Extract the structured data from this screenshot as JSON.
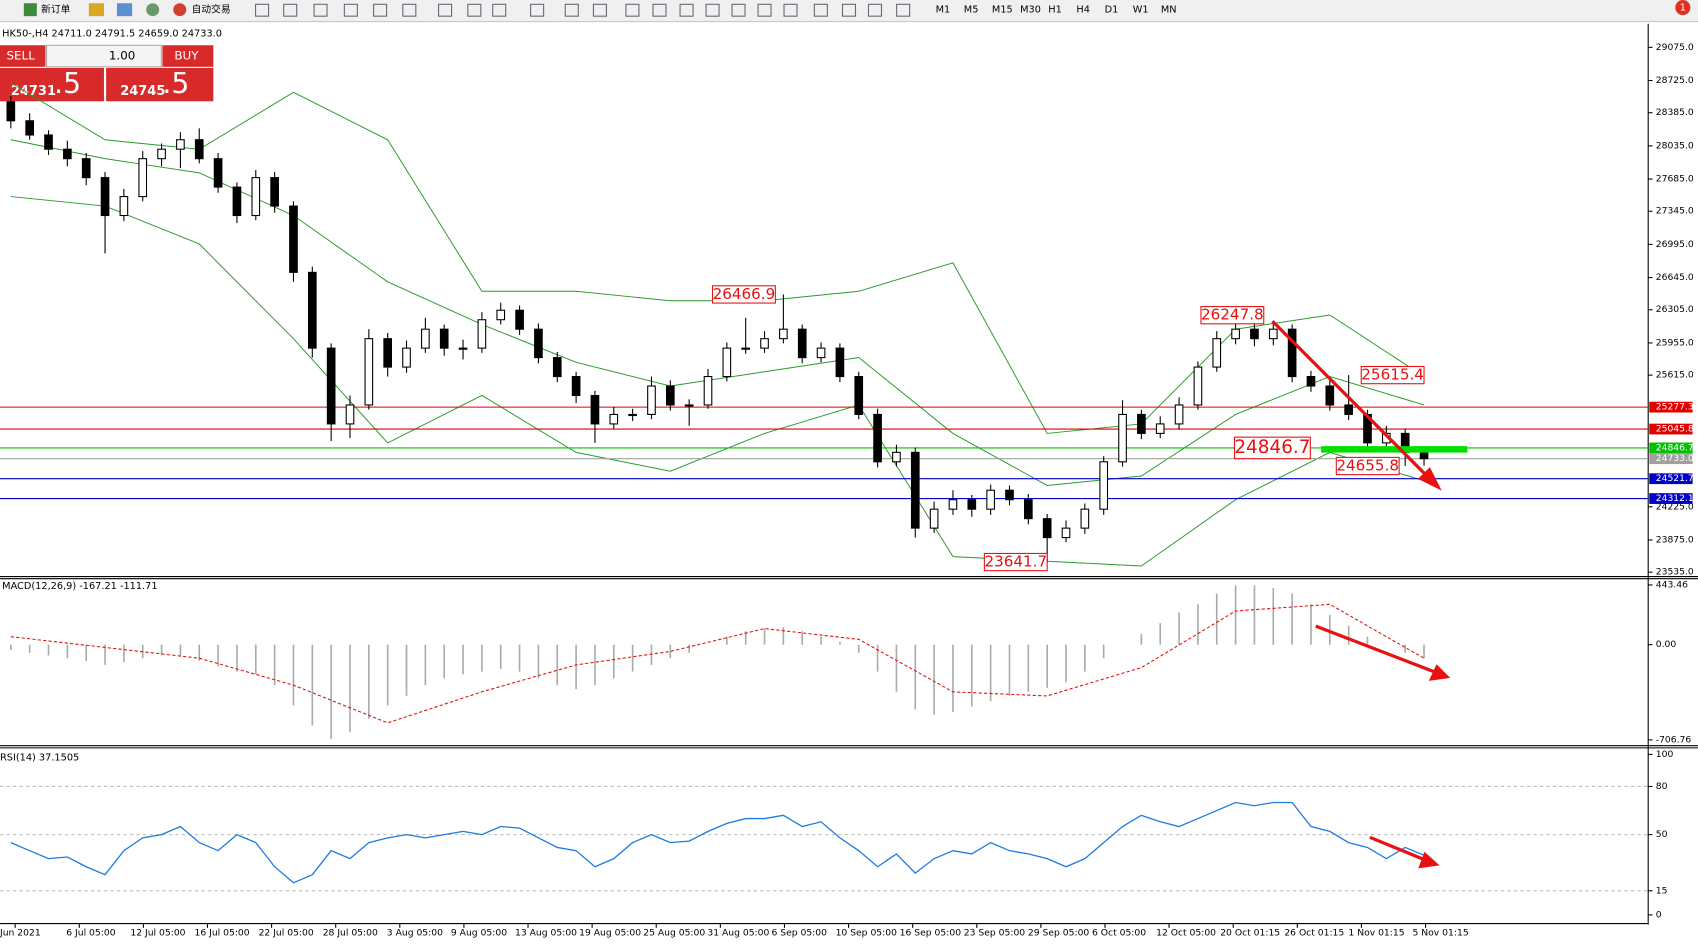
{
  "toolbar": {
    "new_order": "新订单",
    "auto_trade": "自动交易",
    "timeframes": [
      "M1",
      "M5",
      "M15",
      "M30",
      "H1",
      "H4",
      "D1",
      "W1",
      "MN"
    ],
    "alert_count": "1"
  },
  "symbol_info": "HK50-,H4  24711.0 24791.5 24659.0 24733.0",
  "trade_panel": {
    "sell": "SELL",
    "buy": "BUY",
    "lots": "1.00",
    "sell_big": "24731",
    "sell_small": ".5",
    "buy_big": "24745",
    "buy_small": ".5"
  },
  "main_chart": {
    "type": "candlestick",
    "ylim": [
      23489,
      29302
    ],
    "yticks": [
      {
        "value": 29075,
        "label": "29075.0"
      },
      {
        "value": 28725,
        "label": "28725.0"
      },
      {
        "value": 28385,
        "label": "28385.0"
      },
      {
        "value": 28035,
        "label": "28035.0"
      },
      {
        "value": 27685,
        "label": "27685.0"
      },
      {
        "value": 27345,
        "label": "27345.0"
      },
      {
        "value": 26995,
        "label": "26995.0"
      },
      {
        "value": 26645,
        "label": "26645.0"
      },
      {
        "value": 26305,
        "label": "26305.0"
      },
      {
        "value": 25955,
        "label": "25955.0"
      },
      {
        "value": 25615,
        "label": "25615.0"
      },
      {
        "value": 24225,
        "label": "24225.0"
      },
      {
        "value": 23875,
        "label": "23875.0"
      },
      {
        "value": 23535,
        "label": "23535.0"
      }
    ],
    "candles": [
      [
        28500,
        28560,
        28220,
        28300
      ],
      [
        28300,
        28380,
        28100,
        28150
      ],
      [
        28150,
        28200,
        27940,
        28000
      ],
      [
        28000,
        28090,
        27820,
        27900
      ],
      [
        27900,
        27960,
        27620,
        27700
      ],
      [
        27700,
        27760,
        26900,
        27300
      ],
      [
        27300,
        27580,
        27240,
        27500
      ],
      [
        27500,
        27980,
        27450,
        27900
      ],
      [
        27900,
        28060,
        27820,
        28000
      ],
      [
        28000,
        28180,
        27800,
        28100
      ],
      [
        28100,
        28220,
        27850,
        27900
      ],
      [
        27900,
        27960,
        27540,
        27600
      ],
      [
        27600,
        27650,
        27220,
        27300
      ],
      [
        27300,
        27780,
        27250,
        27700
      ],
      [
        27700,
        27760,
        27330,
        27400
      ],
      [
        27400,
        27450,
        26600,
        26700
      ],
      [
        26700,
        26760,
        25800,
        25900
      ],
      [
        25900,
        25950,
        24920,
        25100
      ],
      [
        25100,
        25400,
        24950,
        25300
      ],
      [
        25300,
        26100,
        25250,
        26000
      ],
      [
        26000,
        26060,
        25600,
        25700
      ],
      [
        25700,
        25980,
        25640,
        25900
      ],
      [
        25900,
        26220,
        25850,
        26100
      ],
      [
        26100,
        26150,
        25820,
        25900
      ],
      [
        25900,
        25990,
        25780,
        25900
      ],
      [
        25900,
        26280,
        25850,
        26200
      ],
      [
        26200,
        26380,
        26150,
        26300
      ],
      [
        26300,
        26350,
        26040,
        26100
      ],
      [
        26100,
        26160,
        25740,
        25800
      ],
      [
        25800,
        25860,
        25540,
        25600
      ],
      [
        25600,
        25650,
        25320,
        25400
      ],
      [
        25400,
        25450,
        24900,
        25100
      ],
      [
        25100,
        25280,
        25050,
        25200
      ],
      [
        25200,
        25260,
        25130,
        25200
      ],
      [
        25200,
        25600,
        25150,
        25500
      ],
      [
        25500,
        25560,
        25240,
        25300
      ],
      [
        25300,
        25360,
        25080,
        25300
      ],
      [
        25300,
        25680,
        25260,
        25600
      ],
      [
        25600,
        25960,
        25550,
        25900
      ],
      [
        25900,
        26220,
        25840,
        25900
      ],
      [
        25900,
        26080,
        25850,
        26000
      ],
      [
        26000,
        26466.9,
        25950,
        26100
      ],
      [
        26100,
        26150,
        25740,
        25800
      ],
      [
        25800,
        25960,
        25750,
        25900
      ],
      [
        25900,
        25950,
        25540,
        25600
      ],
      [
        25600,
        25650,
        25150,
        25200
      ],
      [
        25200,
        25260,
        24640,
        24700
      ],
      [
        24700,
        24880,
        24650,
        24800
      ],
      [
        24800,
        24850,
        23900,
        24000
      ],
      [
        24000,
        24280,
        23950,
        24200
      ],
      [
        24200,
        24400,
        24140,
        24300
      ],
      [
        24300,
        24350,
        24120,
        24200
      ],
      [
        24200,
        24460,
        24140,
        24400
      ],
      [
        24400,
        24450,
        24240,
        24300
      ],
      [
        24300,
        24360,
        24040,
        24100
      ],
      [
        24100,
        24150,
        23641.7,
        23900
      ],
      [
        23900,
        24080,
        23850,
        24000
      ],
      [
        24000,
        24260,
        23940,
        24200
      ],
      [
        24200,
        24760,
        24140,
        24700
      ],
      [
        24700,
        25350,
        24650,
        25200
      ],
      [
        25200,
        25250,
        24940,
        25000
      ],
      [
        25000,
        25180,
        24950,
        25100
      ],
      [
        25100,
        25380,
        25040,
        25300
      ],
      [
        25300,
        25760,
        25250,
        25700
      ],
      [
        25700,
        26080,
        25650,
        26000
      ],
      [
        26000,
        26200,
        25940,
        26100
      ],
      [
        26100,
        26247.8,
        25920,
        26000
      ],
      [
        26000,
        26160,
        25930,
        26100
      ],
      [
        26100,
        26150,
        25540,
        25600
      ],
      [
        25600,
        25660,
        25440,
        25500
      ],
      [
        25500,
        25560,
        25240,
        25300
      ],
      [
        25300,
        25615.4,
        25140,
        25200
      ],
      [
        25200,
        25250,
        24840,
        24900
      ],
      [
        24900,
        25080,
        24850,
        25000
      ],
      [
        25000,
        25050,
        24655.8,
        24800
      ],
      [
        24800,
        24850,
        24659,
        24733
      ]
    ],
    "bands": {
      "color": "#2a9a2a",
      "upper": [
        28700,
        28100,
        28000,
        28600,
        28100,
        26500,
        26500,
        26400,
        26400,
        26500,
        26800,
        25000,
        25100,
        26100,
        26250,
        25600
      ],
      "middle": [
        28100,
        27900,
        27750,
        27300,
        26600,
        26150,
        25750,
        25500,
        25650,
        25800,
        25000,
        24450,
        24550,
        25200,
        25600,
        25300
      ],
      "lower": [
        27500,
        27400,
        27000,
        26000,
        24900,
        25400,
        24800,
        24600,
        25000,
        25300,
        23700,
        23650,
        23600,
        24300,
        24800,
        24500
      ]
    },
    "levels": [
      {
        "value": 25277.3,
        "color": "#e00000"
      },
      {
        "value": 25045.8,
        "color": "#e00000"
      },
      {
        "value": 24846.7,
        "color": "#00c000"
      },
      {
        "value": 24733,
        "label": "24733.0",
        "color": "#a0a0a0"
      },
      {
        "value": 24521.7,
        "color": "#0000c8"
      },
      {
        "value": 24312.1,
        "color": "#0000c8"
      }
    ],
    "annotations": [
      26466.9,
      26247.8,
      25615.4,
      24846.7,
      24655.8,
      23641.7
    ]
  },
  "macd": {
    "type": "histogram",
    "title": "MACD(12,26,9) -167.21 -111.71",
    "ylim": [
      -750,
      490
    ],
    "yticks": [
      443.46,
      {
        "value": 0,
        "label": "0.00"
      },
      -706.76
    ],
    "histogram": [
      -40,
      -60,
      -80,
      -100,
      -120,
      -150,
      -130,
      -100,
      -80,
      -90,
      -120,
      -160,
      -200,
      -220,
      -300,
      -450,
      -600,
      -700,
      -650,
      -550,
      -450,
      -380,
      -300,
      -250,
      -220,
      -200,
      -180,
      -200,
      -250,
      -300,
      -330,
      -300,
      -250,
      -200,
      -150,
      -100,
      -60,
      0,
      60,
      100,
      120,
      130,
      100,
      60,
      20,
      -60,
      -200,
      -350,
      -480,
      -520,
      -500,
      -460,
      -420,
      -380,
      -350,
      -320,
      -280,
      -200,
      -100,
      0,
      80,
      160,
      240,
      300,
      380,
      440,
      440,
      420,
      380,
      300,
      220,
      140,
      60,
      0,
      -60,
      -100
    ],
    "signal": [
      60,
      -20,
      -100,
      -300,
      -580,
      -350,
      -150,
      -50,
      120,
      40,
      -350,
      -380,
      -170,
      250,
      300,
      -100
    ]
  },
  "rsi": {
    "type": "line",
    "title": "RSI(14) 37.1505",
    "ylim": [
      -5.4,
      104.05
    ],
    "yticks": [
      100,
      80,
      50,
      15,
      0
    ],
    "color": "#1e7be0",
    "values": [
      45,
      40,
      35,
      36,
      30,
      25,
      40,
      48,
      50,
      55,
      45,
      40,
      50,
      45,
      30,
      20,
      25,
      40,
      35,
      45,
      48,
      50,
      48,
      50,
      52,
      50,
      55,
      54,
      48,
      42,
      40,
      30,
      35,
      45,
      50,
      45,
      46,
      52,
      57,
      60,
      60,
      62,
      55,
      58,
      48,
      40,
      30,
      38,
      26,
      35,
      40,
      38,
      45,
      40,
      38,
      35,
      30,
      35,
      45,
      55,
      62,
      58,
      55,
      60,
      65,
      70,
      68,
      70,
      70,
      55,
      52,
      45,
      42,
      35,
      42,
      37.15
    ]
  },
  "dates": [
    "Jun 2021",
    "6 Jul 05:00",
    "12 Jul 05:00",
    "16 Jul 05:00",
    "22 Jul 05:00",
    "28 Jul 05:00",
    "3 Aug 05:00",
    "9 Aug 05:00",
    "13 Aug 05:00",
    "19 Aug 05:00",
    "25 Aug 05:00",
    "31 Aug 05:00",
    "6 Sep 05:00",
    "10 Sep 05:00",
    "16 Sep 05:00",
    "23 Sep 05:00",
    "29 Sep 05:00",
    "6 Oct 05:00",
    "12 Oct 05:00",
    "20 Oct 01:15",
    "26 Oct 01:15",
    "1 Nov 01:15",
    "5 Nov 01:15"
  ]
}
